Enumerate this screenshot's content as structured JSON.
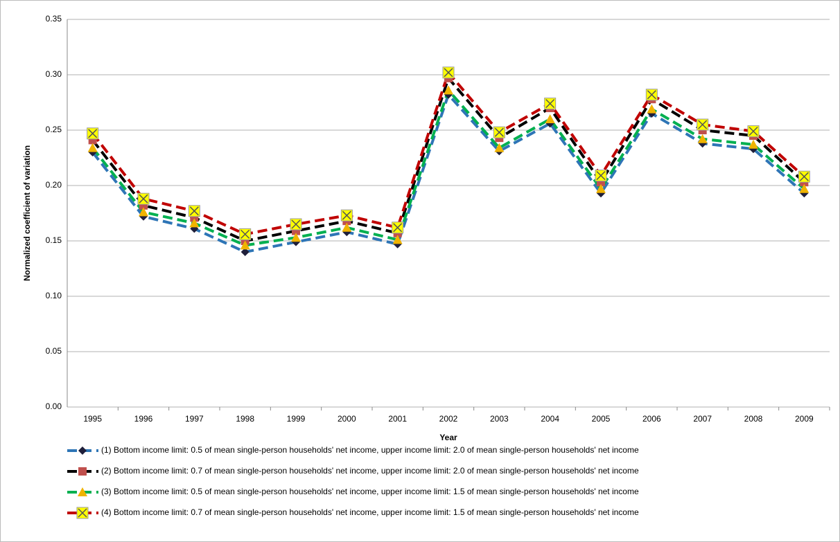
{
  "chart_data": {
    "type": "line",
    "x_label": "Year",
    "y_label": "Normalized coefficient of variation",
    "categories": [
      "1995",
      "1996",
      "1997",
      "1998",
      "1999",
      "2000",
      "2001",
      "2002",
      "2003",
      "2004",
      "2005",
      "2006",
      "2007",
      "2008",
      "2009"
    ],
    "ylim": [
      0,
      0.35
    ],
    "yticks": [
      {
        "value": 0,
        "label": "0.00"
      },
      {
        "value": 0.05,
        "label": "0.05"
      },
      {
        "value": 0.1,
        "label": "0.10"
      },
      {
        "value": 0.15,
        "label": "0.15"
      },
      {
        "value": 0.2,
        "label": "0.20"
      },
      {
        "value": 0.25,
        "label": "0.25"
      },
      {
        "value": 0.3,
        "label": "0.30"
      },
      {
        "value": 0.35,
        "label": "0.35"
      }
    ],
    "grid": true,
    "legend": "bottom",
    "series": [
      {
        "name": "(1) Bottom income limit: 0.5 of mean single-person households' net income, upper income limit: 2.0 of mean single-person households' net income",
        "color": "#2e75b6",
        "marker": "diamond",
        "marker_color": "#1f1f3a",
        "values": [
          0.23,
          0.172,
          0.161,
          0.14,
          0.149,
          0.158,
          0.147,
          0.282,
          0.231,
          0.256,
          0.193,
          0.265,
          0.238,
          0.233,
          0.193
        ]
      },
      {
        "name": "(2) Bottom income limit: 0.7 of mean single-person households' net income, upper income limit: 2.0 of mean single-person households' net income",
        "color": "#000000",
        "marker": "square",
        "marker_color": "#c0504d",
        "values": [
          0.241,
          0.182,
          0.171,
          0.15,
          0.159,
          0.168,
          0.157,
          0.297,
          0.243,
          0.27,
          0.203,
          0.278,
          0.25,
          0.245,
          0.203
        ]
      },
      {
        "name": "(3) Bottom income limit: 0.5 of mean single-person households' net income, upper income limit: 1.5 of mean single-person households' net income",
        "color": "#00b050",
        "marker": "triangle",
        "marker_color": "#f0b400",
        "values": [
          0.234,
          0.176,
          0.166,
          0.146,
          0.153,
          0.162,
          0.151,
          0.286,
          0.234,
          0.26,
          0.197,
          0.269,
          0.242,
          0.237,
          0.197
        ]
      },
      {
        "name": "(4) Bottom income limit: 0.7 of mean single-person households' net income, upper income limit: 1.5 of mean single-person households' net income",
        "color": "#c00000",
        "marker": "xsquare",
        "marker_color": "#ffff00",
        "values": [
          0.247,
          0.188,
          0.177,
          0.156,
          0.165,
          0.173,
          0.162,
          0.302,
          0.248,
          0.274,
          0.209,
          0.282,
          0.255,
          0.249,
          0.208
        ]
      }
    ]
  }
}
